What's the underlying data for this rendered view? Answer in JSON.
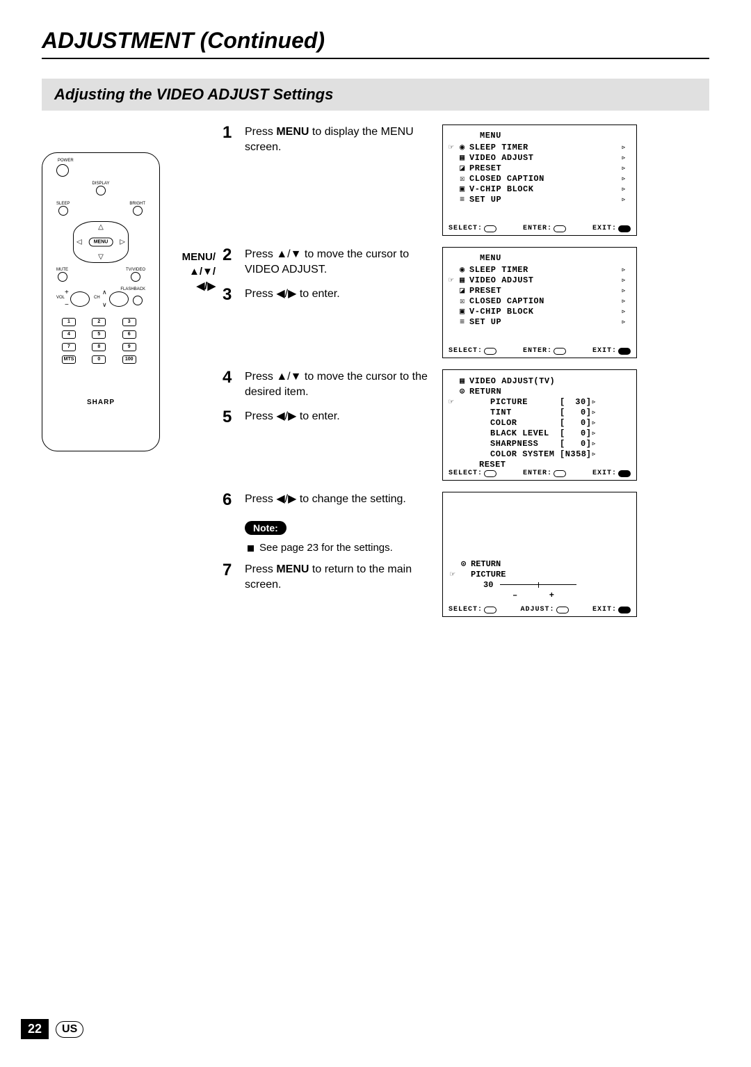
{
  "page": {
    "title": "ADJUSTMENT (Continued)",
    "section": "Adjusting the VIDEO ADJUST Settings",
    "number": "22",
    "region": "US"
  },
  "callout": {
    "line1": "MENU/",
    "line2": "▲/▼/",
    "line3": "◀/▶"
  },
  "remote": {
    "labels": {
      "power": "POWER",
      "display": "DISPLAY",
      "sleep": "SLEEP",
      "bright": "BRIGHT",
      "mute": "MUTE",
      "tvvideo": "TV/VIDEO",
      "vol": "VOL",
      "ch": "CH",
      "flashback": "FLASHBACK",
      "mts": "MTS",
      "hundred": "100"
    },
    "menu_btn": "MENU",
    "brand": "SHARP",
    "keypad": [
      "1",
      "2",
      "3",
      "4",
      "5",
      "6",
      "7",
      "8",
      "9"
    ]
  },
  "steps": {
    "s1": {
      "num": "1",
      "text_before": "Press ",
      "bold": "MENU",
      "text_after": " to display the MENU screen."
    },
    "s2": {
      "num": "2",
      "text": "Press ▲/▼ to move the cursor to VIDEO ADJUST."
    },
    "s3": {
      "num": "3",
      "text": "Press ◀/▶  to enter."
    },
    "s4": {
      "num": "4",
      "text": "Press ▲/▼ to move the cursor to the desired item."
    },
    "s5": {
      "num": "5",
      "text": "Press ◀/▶  to enter."
    },
    "s6": {
      "num": "6",
      "text": "Press ◀/▶  to change the setting."
    },
    "s7": {
      "num": "7",
      "text_before": "Press ",
      "bold": "MENU",
      "text_after": " to return to the main screen."
    }
  },
  "note": {
    "label": "Note:",
    "text": "See page 23 for the settings."
  },
  "osd": {
    "footer": {
      "select": "SELECT:",
      "enter": "ENTER:",
      "adjust": "ADJUST:",
      "exit": "EXIT:"
    },
    "menu1": {
      "title": "MENU",
      "items": [
        "SLEEP TIMER",
        "VIDEO ADJUST",
        "PRESET",
        "CLOSED CAPTION",
        "V-CHIP BLOCK",
        "SET UP"
      ],
      "selected": 0
    },
    "menu2": {
      "title": "MENU",
      "items": [
        "SLEEP TIMER",
        "VIDEO ADJUST",
        "PRESET",
        "CLOSED CAPTION",
        "V-CHIP BLOCK",
        "SET UP"
      ],
      "selected": 1
    },
    "menu3": {
      "title": "VIDEO ADJUST(TV)",
      "return": "RETURN",
      "items": [
        {
          "label": "PICTURE",
          "val": "30"
        },
        {
          "label": "TINT",
          "val": "0"
        },
        {
          "label": "COLOR",
          "val": "0"
        },
        {
          "label": "BLACK LEVEL",
          "val": "0"
        },
        {
          "label": "SHARPNESS",
          "val": "0"
        },
        {
          "label": "COLOR SYSTEM",
          "val": "N358"
        }
      ],
      "reset": "RESET",
      "selected": 0
    },
    "menu4": {
      "return": "RETURN",
      "item": "PICTURE",
      "value": "30",
      "minus": "–",
      "plus": "+"
    }
  }
}
